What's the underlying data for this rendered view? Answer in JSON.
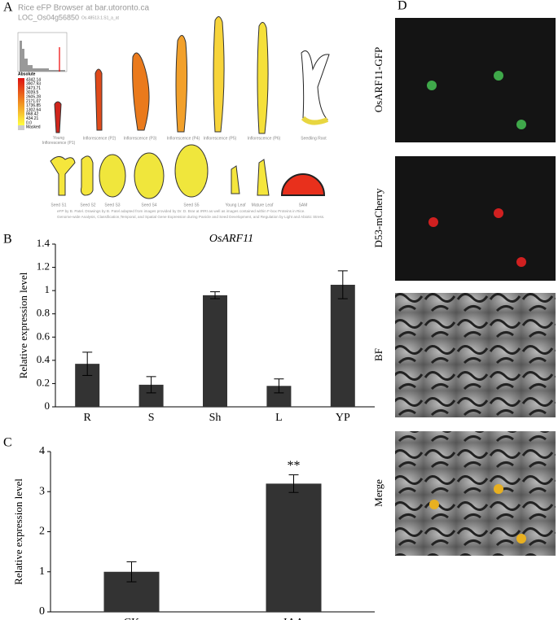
{
  "panel_labels": [
    "A",
    "B",
    "C",
    "D"
  ],
  "efp": {
    "title": "Rice eFP Browser at bar.utoronto.ca",
    "gene": "LOC_Os04g56850",
    "probe": "Os.48513.1.S1_a_at",
    "legend_title": "Absolute",
    "legend_values": [
      "4342.14",
      "3907.93",
      "3473.71",
      "3039.5",
      "2605.28",
      "2171.07",
      "1736.85",
      "1302.64",
      "868.42",
      "434.21",
      "0.0",
      "Masked"
    ],
    "tissues_top": [
      "Young Inflorescence (P1)",
      "Inflorescence (P2)",
      "Inflorescence (P3)",
      "Inflorescence (P4)",
      "Inflorescence (P5)",
      "Inflorescence (P6)",
      "Seedling Root"
    ],
    "tissues_bottom": [
      "Seed S1",
      "Seed S2",
      "Seed S3",
      "Seed S4",
      "Seed S5",
      "Young Leaf",
      "Mature Leaf",
      "SAM"
    ],
    "footer": [
      "eFP by B. Patel. Drawings by B. Patel adapted from images provided by Dr. D. Brar at IRRI as well as images contained within F-box Proteins in Rice.",
      "Genome-wide Analysis, Classification,Temporal, and Spatial Gene Expression during Panicle and Seed Development, and Regulation by Light and Abiotic Stress."
    ]
  },
  "chart_data": [
    {
      "type": "bar",
      "title": "OsARF11",
      "y_label": "Relative expression level",
      "categories": [
        "R",
        "S",
        "Sh",
        "L",
        "YP"
      ],
      "values": [
        0.37,
        0.19,
        0.96,
        0.18,
        1.05
      ],
      "errors": [
        0.1,
        0.07,
        0.03,
        0.06,
        0.12
      ],
      "color": "#333333",
      "ylim": [
        0,
        1.4
      ],
      "yticks": [
        0,
        0.2,
        0.4,
        0.6,
        0.8,
        1,
        1.2,
        1.4
      ]
    },
    {
      "type": "bar",
      "y_label": "Relative expression level",
      "categories": [
        "CK",
        "IAA"
      ],
      "values": [
        1.0,
        3.2
      ],
      "errors": [
        0.25,
        0.22
      ],
      "color": "#333333",
      "annotations": [
        null,
        "**"
      ],
      "ylim": [
        0,
        4
      ],
      "yticks": [
        0,
        1,
        2,
        3,
        4
      ]
    }
  ],
  "microscopy": {
    "labels": [
      "OsARF11-GFP",
      "D53-mCherry",
      "BF",
      "Merge"
    ]
  }
}
